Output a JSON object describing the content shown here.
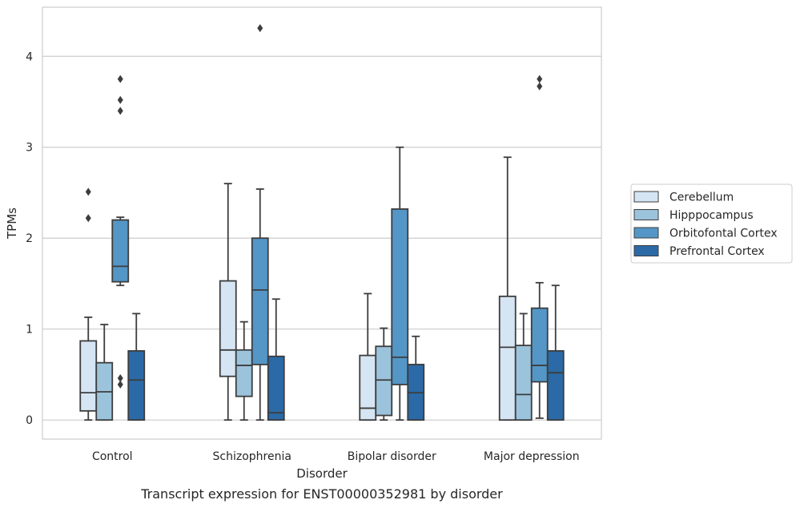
{
  "chart_data": {
    "type": "box",
    "caption": "Transcript expression for ENST00000352981 by disorder",
    "xlabel": "Disorder",
    "ylabel": "TPMs",
    "ylim": [
      -0.21,
      4.54
    ],
    "yticks": [
      0,
      1,
      2,
      3,
      4
    ],
    "grid": "horizontal",
    "legend_position": "right",
    "categories": [
      "Control",
      "Schizophrenia",
      "Bipolar disorder",
      "Major depression"
    ],
    "series": [
      {
        "name": "Cerebellum",
        "color": "#d6e5f3",
        "boxes": [
          {
            "whislo": 0.0,
            "q1": 0.1,
            "med": 0.3,
            "q3": 0.87,
            "whishi": 1.13,
            "fliers": [
              2.22,
              2.51
            ]
          },
          {
            "whislo": 0.0,
            "q1": 0.48,
            "med": 0.77,
            "q3": 1.53,
            "whishi": 2.6,
            "fliers": []
          },
          {
            "whislo": 0.0,
            "q1": 0.0,
            "med": 0.13,
            "q3": 0.71,
            "whishi": 1.39,
            "fliers": []
          },
          {
            "whislo": 0.0,
            "q1": 0.0,
            "med": 0.8,
            "q3": 1.36,
            "whishi": 2.89,
            "fliers": []
          }
        ]
      },
      {
        "name": "Hipppocampus",
        "color": "#9cc3dc",
        "boxes": [
          {
            "whislo": 0.0,
            "q1": 0.0,
            "med": 0.31,
            "q3": 0.63,
            "whishi": 1.05,
            "fliers": []
          },
          {
            "whislo": 0.0,
            "q1": 0.26,
            "med": 0.6,
            "q3": 0.77,
            "whishi": 1.08,
            "fliers": []
          },
          {
            "whislo": 0.0,
            "q1": 0.05,
            "med": 0.44,
            "q3": 0.81,
            "whishi": 1.01,
            "fliers": []
          },
          {
            "whislo": 0.0,
            "q1": 0.0,
            "med": 0.28,
            "q3": 0.82,
            "whishi": 1.17,
            "fliers": []
          }
        ]
      },
      {
        "name": "Orbitofontal Cortex",
        "color": "#5496c6",
        "boxes": [
          {
            "whislo": 1.48,
            "q1": 1.52,
            "med": 1.69,
            "q3": 2.2,
            "whishi": 2.23,
            "fliers": [
              0.39,
              0.46,
              3.4,
              3.52,
              3.75
            ]
          },
          {
            "whislo": 0.0,
            "q1": 0.61,
            "med": 1.43,
            "q3": 2.0,
            "whishi": 2.54,
            "fliers": [
              4.31
            ]
          },
          {
            "whislo": 0.0,
            "q1": 0.39,
            "med": 0.69,
            "q3": 2.32,
            "whishi": 3.0,
            "fliers": []
          },
          {
            "whislo": 0.02,
            "q1": 0.42,
            "med": 0.6,
            "q3": 1.23,
            "whishi": 1.51,
            "fliers": [
              3.67,
              3.75
            ]
          }
        ]
      },
      {
        "name": "Prefrontal Cortex",
        "color": "#2b6aa6",
        "boxes": [
          {
            "whislo": 0.0,
            "q1": 0.0,
            "med": 0.44,
            "q3": 0.76,
            "whishi": 1.17,
            "fliers": []
          },
          {
            "whislo": 0.0,
            "q1": 0.0,
            "med": 0.08,
            "q3": 0.7,
            "whishi": 1.33,
            "fliers": []
          },
          {
            "whislo": 0.0,
            "q1": 0.0,
            "med": 0.3,
            "q3": 0.61,
            "whishi": 0.92,
            "fliers": []
          },
          {
            "whislo": 0.0,
            "q1": 0.0,
            "med": 0.52,
            "q3": 0.76,
            "whishi": 1.48,
            "fliers": []
          }
        ]
      }
    ]
  }
}
